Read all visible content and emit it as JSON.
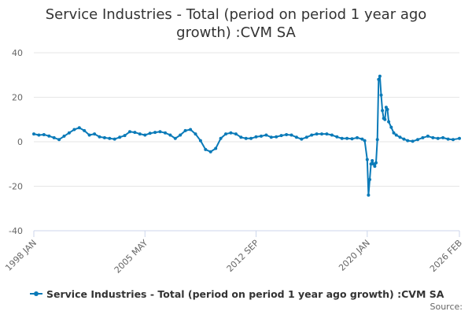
{
  "chart_data": {
    "type": "line",
    "title": "Service Industries - Total (period on period 1 year ago growth) :CVM SA",
    "xlabel": "",
    "ylabel": "",
    "x_range": [
      "1998-01",
      "2026-02"
    ],
    "ylim": [
      -40,
      40
    ],
    "yticks": [
      40,
      20,
      0,
      -20,
      -40
    ],
    "xtick_labels": [
      {
        "label": "1998 JAN",
        "date": "1998-01"
      },
      {
        "label": "2005 MAY",
        "date": "2005-05"
      },
      {
        "label": "2012 SEP",
        "date": "2012-09"
      },
      {
        "label": "2020 JAN",
        "date": "2020-01"
      },
      {
        "label": "2026 FEB",
        "date": "2026-02"
      }
    ],
    "grid": "horizontal",
    "legend_position": "bottom",
    "series": [
      {
        "name": "Service Industries - Total (period on period 1 year ago growth) :CVM SA",
        "color": "#0a7ab8",
        "points": [
          [
            "1998-01",
            3.5
          ],
          [
            "1998-05",
            3.0
          ],
          [
            "1998-09",
            3.2
          ],
          [
            "1999-01",
            2.6
          ],
          [
            "1999-05",
            1.8
          ],
          [
            "1999-09",
            1.0
          ],
          [
            "2000-01",
            2.5
          ],
          [
            "2000-05",
            4.0
          ],
          [
            "2000-09",
            5.5
          ],
          [
            "2001-01",
            6.3
          ],
          [
            "2001-05",
            5.0
          ],
          [
            "2001-09",
            3.0
          ],
          [
            "2002-01",
            3.5
          ],
          [
            "2002-05",
            2.2
          ],
          [
            "2002-09",
            1.8
          ],
          [
            "2003-01",
            1.5
          ],
          [
            "2003-05",
            1.2
          ],
          [
            "2003-09",
            2.0
          ],
          [
            "2004-01",
            2.8
          ],
          [
            "2004-05",
            4.5
          ],
          [
            "2004-09",
            4.2
          ],
          [
            "2005-01",
            3.5
          ],
          [
            "2005-05",
            3.0
          ],
          [
            "2005-09",
            3.8
          ],
          [
            "2006-01",
            4.2
          ],
          [
            "2006-05",
            4.5
          ],
          [
            "2006-09",
            4.0
          ],
          [
            "2007-01",
            3.0
          ],
          [
            "2007-05",
            1.5
          ],
          [
            "2007-09",
            3.0
          ],
          [
            "2008-01",
            5.0
          ],
          [
            "2008-05",
            5.5
          ],
          [
            "2008-09",
            3.5
          ],
          [
            "2009-01",
            0.5
          ],
          [
            "2009-05",
            -3.5
          ],
          [
            "2009-09",
            -4.5
          ],
          [
            "2010-01",
            -3.0
          ],
          [
            "2010-05",
            1.5
          ],
          [
            "2010-09",
            3.5
          ],
          [
            "2011-01",
            4.0
          ],
          [
            "2011-05",
            3.5
          ],
          [
            "2011-09",
            2.0
          ],
          [
            "2012-01",
            1.5
          ],
          [
            "2012-05",
            1.5
          ],
          [
            "2012-09",
            2.2
          ],
          [
            "2013-01",
            2.5
          ],
          [
            "2013-05",
            3.0
          ],
          [
            "2013-09",
            2.0
          ],
          [
            "2014-01",
            2.2
          ],
          [
            "2014-05",
            2.8
          ],
          [
            "2014-09",
            3.2
          ],
          [
            "2015-01",
            3.0
          ],
          [
            "2015-05",
            2.0
          ],
          [
            "2015-09",
            1.2
          ],
          [
            "2016-01",
            2.0
          ],
          [
            "2016-05",
            3.0
          ],
          [
            "2016-09",
            3.5
          ],
          [
            "2017-01",
            3.5
          ],
          [
            "2017-05",
            3.5
          ],
          [
            "2017-09",
            3.0
          ],
          [
            "2018-01",
            2.2
          ],
          [
            "2018-05",
            1.5
          ],
          [
            "2018-09",
            1.5
          ],
          [
            "2019-01",
            1.3
          ],
          [
            "2019-05",
            1.8
          ],
          [
            "2019-09",
            1.2
          ],
          [
            "2019-11",
            0.5
          ],
          [
            "2020-01",
            -8.0
          ],
          [
            "2020-02",
            -24.0
          ],
          [
            "2020-03",
            -17.0
          ],
          [
            "2020-04",
            -10.0
          ],
          [
            "2020-05",
            -8.5
          ],
          [
            "2020-06",
            -10.0
          ],
          [
            "2020-07",
            -11.0
          ],
          [
            "2020-08",
            -9.5
          ],
          [
            "2020-09",
            1.0
          ],
          [
            "2020-10",
            28.0
          ],
          [
            "2020-11",
            29.5
          ],
          [
            "2020-12",
            21.0
          ],
          [
            "2021-01",
            14.0
          ],
          [
            "2021-02",
            10.5
          ],
          [
            "2021-03",
            10.0
          ],
          [
            "2021-04",
            15.5
          ],
          [
            "2021-05",
            14.5
          ],
          [
            "2021-06",
            9.0
          ],
          [
            "2021-08",
            6.5
          ],
          [
            "2021-10",
            4.0
          ],
          [
            "2021-12",
            3.0
          ],
          [
            "2022-03",
            2.0
          ],
          [
            "2022-06",
            1.2
          ],
          [
            "2022-09",
            0.5
          ],
          [
            "2023-01",
            0.2
          ],
          [
            "2023-05",
            1.0
          ],
          [
            "2023-09",
            1.8
          ],
          [
            "2024-01",
            2.5
          ],
          [
            "2024-05",
            1.8
          ],
          [
            "2024-09",
            1.5
          ],
          [
            "2025-01",
            1.8
          ],
          [
            "2025-05",
            1.2
          ],
          [
            "2025-09",
            1.0
          ],
          [
            "2026-02",
            1.5
          ]
        ]
      }
    ]
  },
  "legend": {
    "label": "Service Industries - Total (period on period 1 year ago growth) :CVM SA"
  },
  "footer": {
    "source_label": "Source:"
  }
}
